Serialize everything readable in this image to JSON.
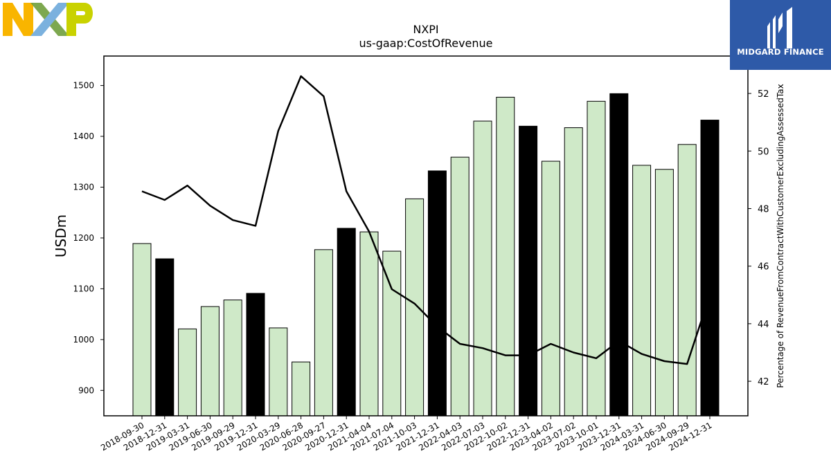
{
  "logos": {
    "left_logo": "NXP",
    "right_logo_text": "MIDGARD FINANCE"
  },
  "colors": {
    "bar_annual": "#000000",
    "bar_quarter": "#cfe9c8",
    "line": "#000000",
    "brand_blue": "#2e5aa8"
  },
  "chart_data": {
    "type": "bar",
    "title": "NXPI",
    "subtitle": "us-gaap:CostOfRevenue",
    "ylabel": "USDm",
    "ylabel_right": "Percentage of RevenueFromContractWithCustomerExcludingAssessedTax",
    "ylim": [
      850,
      1558
    ],
    "ylim_right": [
      40.8,
      53.3
    ],
    "yticks": [
      900,
      1000,
      1100,
      1200,
      1300,
      1400,
      1500
    ],
    "yticks_right": [
      42,
      44,
      46,
      48,
      50,
      52
    ],
    "grid": false,
    "categories": [
      "2018-09-30",
      "2018-12-31",
      "2019-03-31",
      "2019-06-30",
      "2019-09-29",
      "2019-12-31",
      "2020-03-29",
      "2020-06-28",
      "2020-09-27",
      "2020-12-31",
      "2021-04-04",
      "2021-07-04",
      "2021-10-03",
      "2021-12-31",
      "2022-04-03",
      "2022-07-03",
      "2022-10-02",
      "2022-12-31",
      "2023-04-02",
      "2023-07-02",
      "2023-10-01",
      "2023-12-31",
      "2024-03-31",
      "2024-06-30",
      "2024-09-29",
      "2024-12-31"
    ],
    "series": [
      {
        "type": "bar",
        "values": [
          1189,
          1159,
          1021,
          1065,
          1078,
          1091,
          1023,
          956,
          1177,
          1219,
          1212,
          1174,
          1277,
          1332,
          1359,
          1430,
          1477,
          1420,
          1351,
          1417,
          1469,
          1484,
          1343,
          1335,
          1384,
          1432
        ],
        "annual": [
          false,
          true,
          false,
          false,
          false,
          true,
          false,
          false,
          false,
          true,
          false,
          false,
          false,
          true,
          false,
          false,
          false,
          true,
          false,
          false,
          false,
          true,
          false,
          false,
          false,
          true
        ]
      },
      {
        "type": "line",
        "axis": "right",
        "values": [
          48.6,
          48.3,
          48.8,
          48.1,
          47.6,
          47.4,
          50.7,
          52.6,
          51.9,
          48.6,
          47.2,
          45.2,
          44.7,
          43.9,
          43.3,
          43.15,
          42.9,
          42.9,
          43.3,
          43.0,
          42.8,
          43.4,
          42.95,
          42.7,
          42.6,
          45.0
        ]
      }
    ]
  }
}
